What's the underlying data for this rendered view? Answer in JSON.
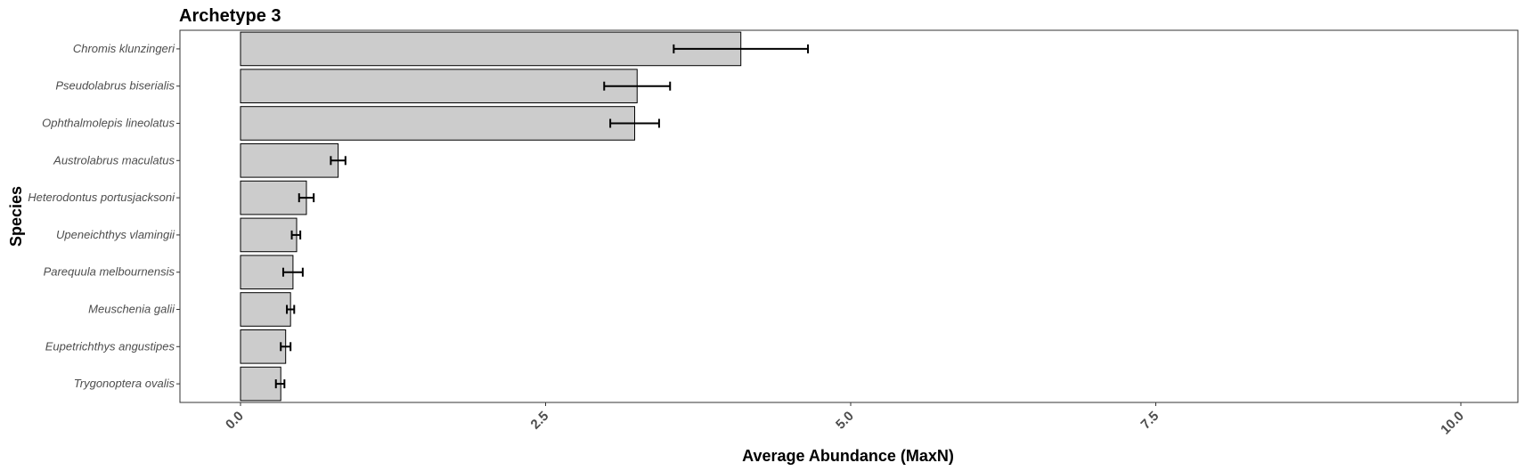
{
  "chart_data": {
    "type": "bar",
    "orientation": "horizontal",
    "title": "Archetype 3",
    "xlabel": "Average Abundance (MaxN)",
    "ylabel": "Species",
    "xlim": [
      0,
      10
    ],
    "xticks": [
      "0.0",
      "2.5",
      "5.0",
      "7.5",
      "10.0"
    ],
    "xtick_values": [
      0,
      2.5,
      5,
      7.5,
      10
    ],
    "grid": false,
    "bar_color": "#cccccc",
    "bar_edge_color": "#000000",
    "categories": [
      "Chromis klunzingeri",
      "Pseudolabrus biserialis",
      "Ophthalmolepis lineolatus",
      "Austrolabrus maculatus",
      "Heterodontus portusjacksoni",
      "Upeneichthys vlamingii",
      "Parequula melbournensis",
      "Meuschenia galii",
      "Eupetrichthys angustipes",
      "Trygonoptera ovalis"
    ],
    "values": [
      4.1,
      3.25,
      3.23,
      0.8,
      0.54,
      0.46,
      0.43,
      0.41,
      0.37,
      0.33
    ],
    "error_low": [
      3.55,
      2.98,
      3.03,
      0.74,
      0.48,
      0.42,
      0.35,
      0.38,
      0.33,
      0.29
    ],
    "error_high": [
      4.65,
      3.52,
      3.43,
      0.86,
      0.6,
      0.49,
      0.51,
      0.44,
      0.41,
      0.36
    ]
  }
}
